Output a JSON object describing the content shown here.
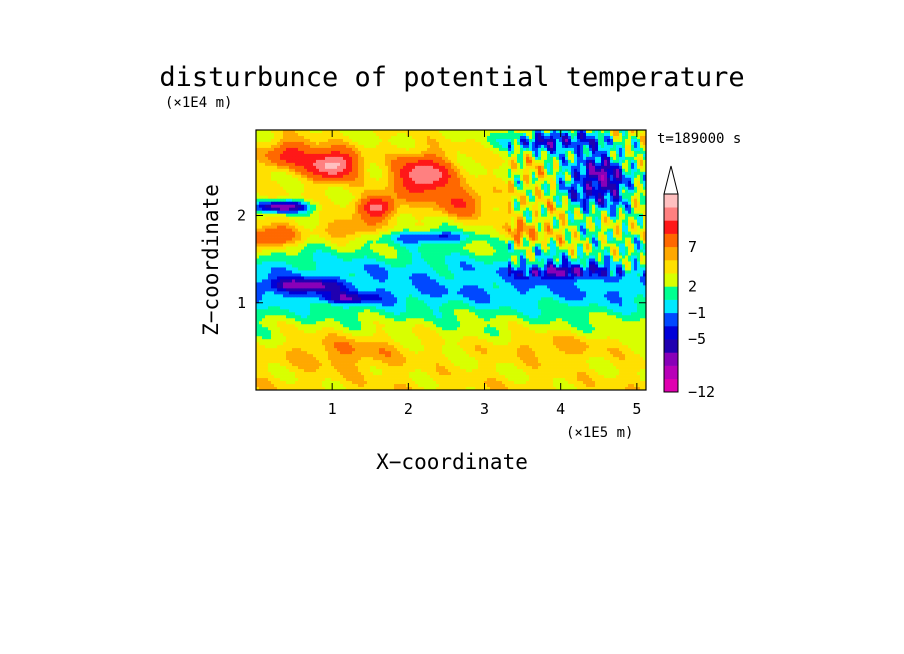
{
  "chart_data": {
    "type": "heatmap",
    "title": "disturbunce of potential temperature",
    "xlabel": "X−coordinate",
    "ylabel": "Z−coordinate",
    "x_unit_label": "(×1E5 m)",
    "y_unit_label": "(×1E4 m)",
    "time_label": "t=189000 s",
    "xlim": [
      0,
      5.12
    ],
    "ylim": [
      0,
      2.98
    ],
    "x_ticks": [
      1,
      2,
      3,
      4,
      5
    ],
    "y_ticks": [
      1,
      2
    ],
    "x_tick_labels": [
      "1",
      "2",
      "3",
      "4",
      "5"
    ],
    "y_tick_labels": [
      "1",
      "2"
    ],
    "grid": false,
    "colorbar": {
      "colors": [
        "#e000b0",
        "#b800b8",
        "#8800b8",
        "#2000b0",
        "#0000d8",
        "#0048ff",
        "#00e8ff",
        "#00ff90",
        "#d8ff00",
        "#ffe000",
        "#ffa800",
        "#ff6800",
        "#ff1818",
        "#ff8080",
        "#ffc0c0"
      ],
      "tick_labels": [
        "−12",
        "−5",
        "−1",
        "2",
        "7"
      ],
      "tick_band_index": [
        0,
        4,
        6,
        8,
        11
      ],
      "extend_top": true
    },
    "features": [
      {
        "x": 1.0,
        "z": 2.58,
        "sx": 0.3,
        "sz": 0.16,
        "v": 9
      },
      {
        "x": 2.2,
        "z": 2.45,
        "sx": 0.35,
        "sz": 0.22,
        "v": 8
      },
      {
        "x": 1.6,
        "z": 2.1,
        "sx": 0.22,
        "sz": 0.12,
        "v": 7
      },
      {
        "x": 0.45,
        "z": 2.7,
        "sx": 0.3,
        "sz": 0.15,
        "v": 5
      },
      {
        "x": 2.7,
        "z": 2.15,
        "sx": 0.3,
        "sz": 0.15,
        "v": 4
      },
      {
        "x": 0.2,
        "z": 1.75,
        "sx": 0.35,
        "sz": 0.12,
        "v": 5
      },
      {
        "x": 1.25,
        "z": 1.85,
        "sx": 0.35,
        "sz": 0.12,
        "v": 3
      },
      {
        "x": 0.35,
        "z": 2.1,
        "sx": 0.35,
        "sz": 0.07,
        "v": -7
      },
      {
        "x": 4.5,
        "z": 2.4,
        "sx": 0.45,
        "sz": 0.35,
        "v": -6
      },
      {
        "x": 3.9,
        "z": 2.85,
        "sx": 0.6,
        "sz": 0.12,
        "v": -5
      },
      {
        "x": 2.3,
        "z": 1.75,
        "sx": 0.5,
        "sz": 0.07,
        "v": -4
      },
      {
        "x": 0.6,
        "z": 1.2,
        "sx": 0.5,
        "sz": 0.08,
        "v": -4
      },
      {
        "x": 4.0,
        "z": 1.35,
        "sx": 0.5,
        "sz": 0.08,
        "v": -4
      },
      {
        "x": 1.2,
        "z": 1.05,
        "sx": 0.4,
        "sz": 0.06,
        "v": -3
      },
      {
        "x": 3.5,
        "z": 1.8,
        "sx": 0.45,
        "sz": 0.12,
        "v": 2
      },
      {
        "x": 1.2,
        "z": 0.45,
        "sx": 0.8,
        "sz": 0.2,
        "v": 2
      },
      {
        "x": 3.9,
        "z": 0.5,
        "sx": 0.8,
        "sz": 0.15,
        "v": 1.5
      }
    ],
    "background_profile": [
      {
        "z": 0.0,
        "v": 1.5
      },
      {
        "z": 0.4,
        "v": 1.0
      },
      {
        "z": 0.75,
        "v": 0.3
      },
      {
        "z": 0.9,
        "v": -0.6
      },
      {
        "z": 1.1,
        "v": -2
      },
      {
        "z": 1.4,
        "v": -1.5
      },
      {
        "z": 1.6,
        "v": -0.2
      },
      {
        "z": 2.0,
        "v": 1.0
      },
      {
        "z": 2.98,
        "v": 1.0
      }
    ]
  }
}
